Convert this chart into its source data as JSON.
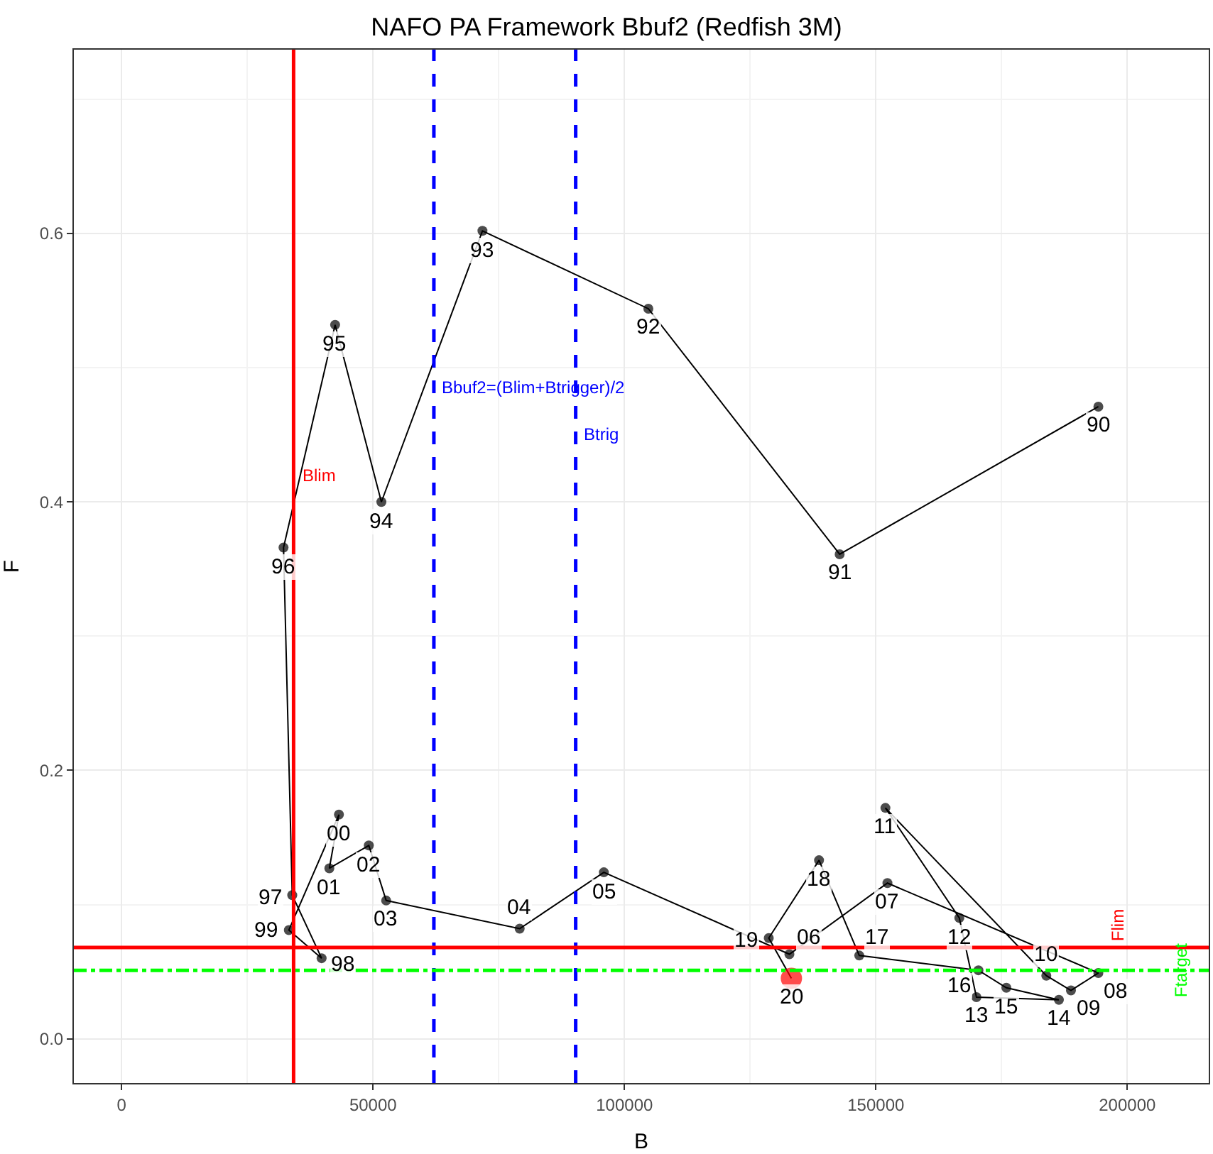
{
  "chart_data": {
    "type": "line",
    "title": "NAFO PA Framework Bbuf2 (Redfish 3M)",
    "xlabel": "B",
    "ylabel": "F",
    "marker": "circle",
    "line_style": "solid",
    "grid": true,
    "xlim": [
      -9500,
      216200
    ],
    "ylim": [
      -0.033,
      0.737
    ],
    "xticks": [
      0,
      50000,
      100000,
      150000,
      200000
    ],
    "yticks": [
      {
        "value": 0,
        "label": "0.0"
      },
      {
        "value": 0.2,
        "label": "0.2"
      },
      {
        "value": 0.4,
        "label": "0.4"
      },
      {
        "value": 0.6,
        "label": "0.6"
      }
    ],
    "series": [
      {
        "color": "#000000",
        "x": [
          194250,
          142800,
          104750,
          71760,
          51660,
          42460,
          32200,
          33930,
          39770,
          33260,
          43220,
          41310,
          49160,
          52610,
          79160,
          95900,
          132800,
          152300,
          194250,
          188800,
          183900,
          151900,
          166600,
          170000,
          186400,
          175950,
          170400,
          146700,
          138700,
          128700,
          133200
        ],
        "values": [
          0.471,
          0.361,
          0.544,
          0.602,
          0.4,
          0.532,
          0.366,
          0.107,
          0.06,
          0.081,
          0.167,
          0.127,
          0.144,
          0.103,
          0.082,
          0.124,
          0.063,
          0.116,
          0.049,
          0.036,
          0.047,
          0.172,
          0.09,
          0.031,
          0.029,
          0.038,
          0.051,
          0.062,
          0.133,
          0.075,
          0.045
        ],
        "colors": [
          "#000000",
          "#000000",
          "#000000",
          "#000000",
          "#000000",
          "#000000",
          "#000000",
          "#000000",
          "#000000",
          "#000000",
          "#000000",
          "#000000",
          "#000000",
          "#000000",
          "#000000",
          "#000000",
          "#000000",
          "#000000",
          "#000000",
          "#000000",
          "#000000",
          "#000000",
          "#000000",
          "#000000",
          "#000000",
          "#000000",
          "#000000",
          "#000000",
          "#000000",
          "#000000",
          "#ff0000"
        ]
      }
    ],
    "annotations": [
      {
        "text": "90",
        "x": 194250,
        "y": 0.471
      },
      {
        "text": "91",
        "x": 142800,
        "y": 0.361
      },
      {
        "text": "92",
        "x": 104750,
        "y": 0.544
      },
      {
        "text": "93",
        "x": 71760,
        "y": 0.602
      },
      {
        "text": "94",
        "x": 51660,
        "y": 0.4
      },
      {
        "text": "95",
        "x": 42460,
        "y": 0.532
      },
      {
        "text": "96",
        "x": 32200,
        "y": 0.366
      },
      {
        "text": "97",
        "x": 33930,
        "y": 0.107
      },
      {
        "text": "98",
        "x": 39770,
        "y": 0.06
      },
      {
        "text": "99",
        "x": 33260,
        "y": 0.081
      },
      {
        "text": "00",
        "x": 43220,
        "y": 0.167
      },
      {
        "text": "01",
        "x": 41310,
        "y": 0.127
      },
      {
        "text": "02",
        "x": 49160,
        "y": 0.144
      },
      {
        "text": "03",
        "x": 52610,
        "y": 0.103
      },
      {
        "text": "04",
        "x": 79160,
        "y": 0.082
      },
      {
        "text": "05",
        "x": 95900,
        "y": 0.124
      },
      {
        "text": "06",
        "x": 132800,
        "y": 0.063
      },
      {
        "text": "07",
        "x": 152300,
        "y": 0.116
      },
      {
        "text": "08",
        "x": 194250,
        "y": 0.049
      },
      {
        "text": "09",
        "x": 188800,
        "y": 0.036
      },
      {
        "text": "10",
        "x": 183900,
        "y": 0.047
      },
      {
        "text": "11",
        "x": 151900,
        "y": 0.172
      },
      {
        "text": "12",
        "x": 166600,
        "y": 0.09
      },
      {
        "text": "13",
        "x": 170000,
        "y": 0.031
      },
      {
        "text": "14",
        "x": 186400,
        "y": 0.029
      },
      {
        "text": "15",
        "x": 175950,
        "y": 0.038
      },
      {
        "text": "16",
        "x": 170400,
        "y": 0.051
      },
      {
        "text": "17",
        "x": 146700,
        "y": 0.062
      },
      {
        "text": "18",
        "x": 138700,
        "y": 0.133
      },
      {
        "text": "19",
        "x": 128700,
        "y": 0.075
      },
      {
        "text": "20",
        "x": 133200,
        "y": 0.045
      }
    ],
    "ref_lines": [
      {
        "axis": "x",
        "value": 34200,
        "label": "Blim",
        "color": "#ff0000",
        "line_style": "solid"
      },
      {
        "axis": "x",
        "value": 62100,
        "label": "Bbuf2=(Blim+Btrigger)/2",
        "color": "#0000ff",
        "line_style": "dashed"
      },
      {
        "axis": "x",
        "value": 90300,
        "label": "Btrig",
        "color": "#0000ff",
        "line_style": "dashed"
      },
      {
        "axis": "y",
        "value": 0.068,
        "label": "Flim",
        "color": "#ff0000",
        "line_style": "solid"
      },
      {
        "axis": "y",
        "value": 0.051,
        "label": "Ftarget",
        "color": "#00ff00",
        "line_style": "dashdot"
      }
    ]
  }
}
